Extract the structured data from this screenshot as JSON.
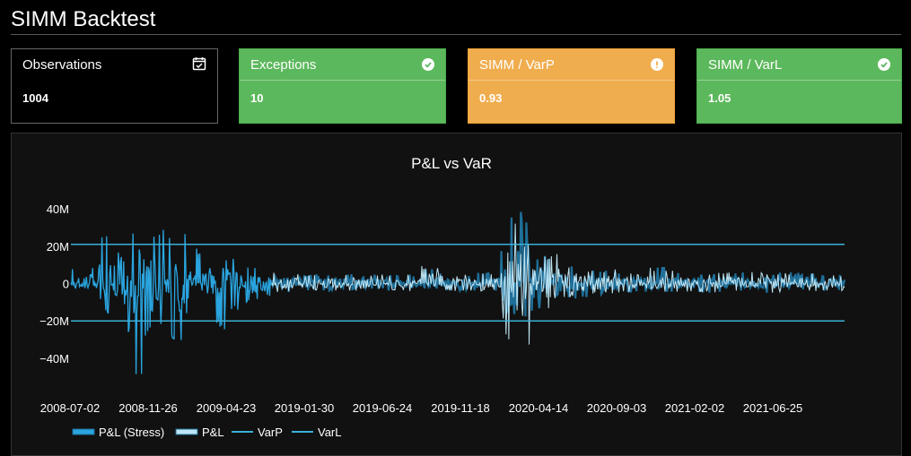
{
  "page": {
    "title": "SIMM Backtest"
  },
  "cards": {
    "observations": {
      "label": "Observations",
      "value": "1004",
      "icon": "calendar-check-icon"
    },
    "exceptions": {
      "label": "Exceptions",
      "value": "10",
      "icon": "check-circle-icon",
      "color": "#5cb85c"
    },
    "simm_varp": {
      "label": "SIMM / VarP",
      "value": "0.93",
      "icon": "exclamation-circle-icon",
      "color": "#f0ad4e"
    },
    "simm_varl": {
      "label": "SIMM / VarL",
      "value": "1.05",
      "icon": "check-circle-icon",
      "color": "#5cb85c"
    }
  },
  "colors": {
    "pnl_stress": "#2aa5e0",
    "pnl": "#bfe6f5",
    "varp": "#3ab0d8",
    "varl": "#3ab0d8"
  },
  "chart_data": {
    "type": "line",
    "title": "P&L vs VaR",
    "y_ticks": [
      "40M",
      "20M",
      "0",
      "−20M",
      "−40M"
    ],
    "y_tick_values": [
      40000000,
      20000000,
      0,
      -20000000,
      -40000000
    ],
    "ylim": [
      -53000000,
      42000000
    ],
    "x_tick_labels": [
      "2008-07-02",
      "2008-11-26",
      "2009-04-23",
      "2019-01-30",
      "2019-06-24",
      "2019-11-18",
      "2020-04-14",
      "2020-09-03",
      "2021-02-02",
      "2021-06-25"
    ],
    "observations": 1004,
    "varp_level": 21000000,
    "varl_level": -20000000,
    "grid": false,
    "legend_position": "bottom-left",
    "series": [
      {
        "name": "P&L (Stress)",
        "x_range": [
          "2008-07-02",
          "2009-05-29"
        ],
        "envelope_minmax": [
          [
            -3000000,
            8000000
          ],
          [
            -5000000,
            10000000
          ],
          [
            -18000000,
            28000000
          ],
          [
            -12000000,
            33000000
          ],
          [
            -52000000,
            35000000
          ],
          [
            -30000000,
            30000000
          ],
          [
            -28000000,
            30000000
          ],
          [
            -35000000,
            28000000
          ],
          [
            -16000000,
            20000000
          ],
          [
            -12000000,
            10000000
          ],
          [
            -25000000,
            16000000
          ],
          [
            -15000000,
            14000000
          ],
          [
            -10000000,
            10000000
          ],
          [
            -8000000,
            8000000
          ]
        ]
      },
      {
        "name": "P&L",
        "x_range": [
          "2018-12-01",
          "2021-11-30"
        ],
        "envelope_minmax": [
          [
            -5000000,
            6000000
          ],
          [
            -4000000,
            5000000
          ],
          [
            -4000000,
            6000000
          ],
          [
            -3000000,
            5000000
          ],
          [
            -4000000,
            5000000
          ],
          [
            -3000000,
            10000000
          ],
          [
            -4000000,
            5000000
          ],
          [
            -4000000,
            6000000
          ],
          [
            -36000000,
            40000000
          ],
          [
            -15000000,
            16000000
          ],
          [
            -8000000,
            10000000
          ],
          [
            -6000000,
            8000000
          ],
          [
            -5000000,
            6000000
          ],
          [
            -5000000,
            9000000
          ],
          [
            -5000000,
            6000000
          ],
          [
            -5000000,
            6000000
          ],
          [
            -4000000,
            7000000
          ],
          [
            -5000000,
            6000000
          ],
          [
            -4000000,
            6000000
          ],
          [
            -4000000,
            5000000
          ]
        ]
      },
      {
        "name": "VarP",
        "values": [
          21000000,
          21000000
        ]
      },
      {
        "name": "VarL",
        "values": [
          -20000000,
          -20000000
        ]
      }
    ]
  }
}
